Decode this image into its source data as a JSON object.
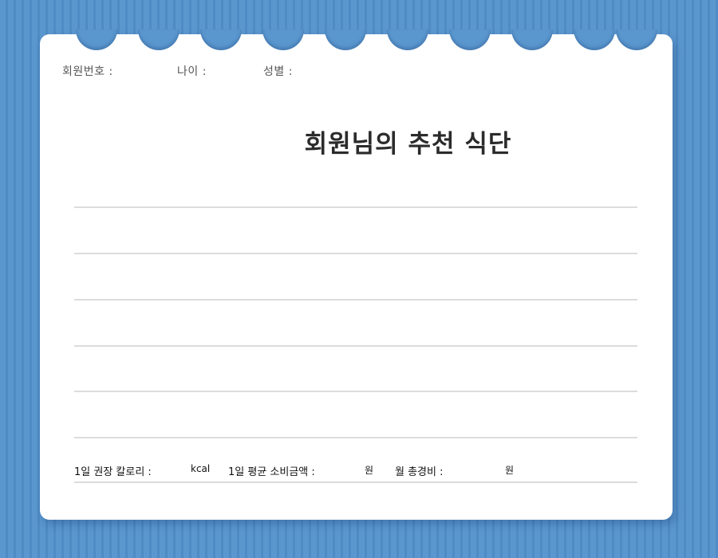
{
  "header": {
    "member_number_label": "회원번호 :",
    "age_label": "나이 :",
    "gender_label": "성별 :"
  },
  "title": "회원님의 추천 식단",
  "footer": {
    "daily_calorie_label": "1일 권장 칼로리 :",
    "calorie_unit": "kcal",
    "daily_cost_label": "1일 평균 소비금액 :",
    "daily_cost_unit": "원",
    "monthly_cost_label": "월 총경비 :",
    "monthly_cost_unit": "원"
  },
  "colors": {
    "background": "#5b97cf",
    "card": "#ffffff",
    "rule": "#dcdcdc"
  }
}
